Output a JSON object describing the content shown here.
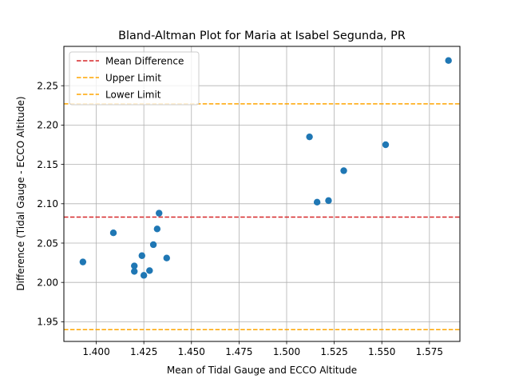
{
  "chart_data": {
    "type": "scatter",
    "title": "Bland-Altman Plot for Maria at Isabel Segunda, PR",
    "xlabel": "Mean of Tidal Gauge and ECCO Altitude",
    "ylabel": "Difference (Tidal Gauge - ECCO Altitude)",
    "xlim": [
      1.383,
      1.591
    ],
    "ylim": [
      1.925,
      2.3
    ],
    "xticks": [
      1.4,
      1.425,
      1.45,
      1.475,
      1.5,
      1.525,
      1.55,
      1.575
    ],
    "xtick_labels": [
      "1.400",
      "1.425",
      "1.450",
      "1.475",
      "1.500",
      "1.525",
      "1.550",
      "1.575"
    ],
    "yticks": [
      1.95,
      2.0,
      2.05,
      2.1,
      2.15,
      2.2,
      2.25
    ],
    "ytick_labels": [
      "1.95",
      "2.00",
      "2.05",
      "2.10",
      "2.15",
      "2.20",
      "2.25"
    ],
    "grid": true,
    "legend_position": "top-left",
    "series": [
      {
        "color": "#1f77b4",
        "points": [
          {
            "x": 1.393,
            "y": 2.026
          },
          {
            "x": 1.409,
            "y": 2.063
          },
          {
            "x": 1.42,
            "y": 2.014
          },
          {
            "x": 1.42,
            "y": 2.021
          },
          {
            "x": 1.424,
            "y": 2.034
          },
          {
            "x": 1.425,
            "y": 2.009
          },
          {
            "x": 1.428,
            "y": 2.015
          },
          {
            "x": 1.43,
            "y": 2.048
          },
          {
            "x": 1.432,
            "y": 2.068
          },
          {
            "x": 1.433,
            "y": 2.088
          },
          {
            "x": 1.437,
            "y": 2.031
          },
          {
            "x": 1.512,
            "y": 2.185
          },
          {
            "x": 1.516,
            "y": 2.102
          },
          {
            "x": 1.522,
            "y": 2.104
          },
          {
            "x": 1.53,
            "y": 2.142
          },
          {
            "x": 1.552,
            "y": 2.175
          },
          {
            "x": 1.585,
            "y": 2.282
          }
        ]
      }
    ],
    "hlines": [
      {
        "label": "Mean Difference",
        "y": 2.083,
        "color": "#d62728",
        "style": "dashed"
      },
      {
        "label": "Upper Limit",
        "y": 2.227,
        "color": "#ffa500",
        "style": "dashed"
      },
      {
        "label": "Lower Limit",
        "y": 1.94,
        "color": "#ffa500",
        "style": "dashed"
      }
    ]
  }
}
